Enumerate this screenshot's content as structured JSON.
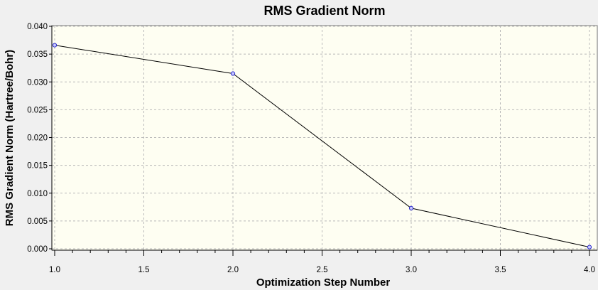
{
  "chart_data": {
    "type": "line",
    "title": "RMS Gradient Norm",
    "xlabel": "Optimization Step Number",
    "ylabel": "RMS Gradient Norm (Hartree/Bohr)",
    "xlim": [
      1.0,
      4.0
    ],
    "ylim": [
      0.0,
      0.04
    ],
    "x_ticks": [
      "1.0",
      "1.5",
      "2.0",
      "2.5",
      "3.0",
      "3.5",
      "4.0"
    ],
    "y_ticks": [
      "0.000",
      "0.005",
      "0.010",
      "0.015",
      "0.020",
      "0.025",
      "0.030",
      "0.035",
      "0.040"
    ],
    "grid": true,
    "legend": "none",
    "series": [
      {
        "x": [
          1.0,
          2.0,
          3.0,
          4.0
        ],
        "y": [
          0.0366,
          0.0315,
          0.0073,
          0.0003
        ]
      }
    ],
    "colors": {
      "plot_background": "#fefef2",
      "line": "#000000",
      "marker_stroke": "#2a2acc",
      "marker_fill": "#c8c8ff",
      "window_background": "#f0f0f0"
    }
  }
}
